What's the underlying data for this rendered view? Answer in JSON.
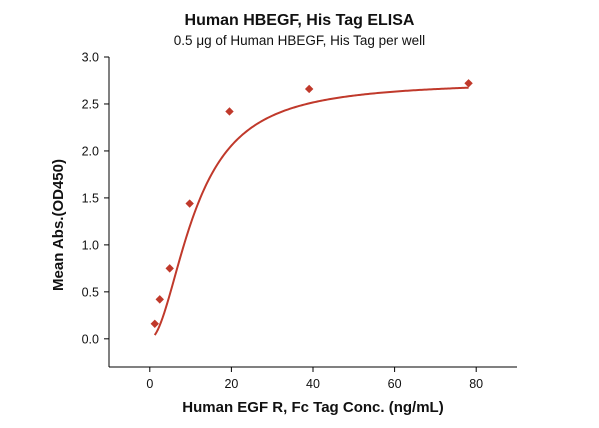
{
  "chart_data": {
    "type": "scatter",
    "title": "Human HBEGF, His Tag ELISA",
    "subtitle": "0.5 μg of Human HBEGF, His Tag per well",
    "xlabel": "Human EGF R, Fc Tag Conc. (ng/mL)",
    "ylabel": "Mean Abs.(OD450)",
    "xlim": [
      -10,
      90
    ],
    "ylim": [
      -0.3,
      3.0
    ],
    "xticks": [
      0,
      20,
      40,
      60,
      80
    ],
    "yticks": [
      0.0,
      0.5,
      1.0,
      1.5,
      2.0,
      2.5,
      3.0
    ],
    "xtick_labels": [
      "0",
      "20",
      "40",
      "60",
      "80"
    ],
    "ytick_labels": [
      "0.0",
      "0.5",
      "1.0",
      "1.5",
      "2.0",
      "2.5",
      "3.0"
    ],
    "grid": false,
    "series": [
      {
        "x": [
          1.22,
          2.44,
          4.88,
          9.77,
          19.53,
          39.06,
          78.13
        ],
        "y": [
          0.16,
          0.42,
          0.75,
          1.44,
          2.42,
          2.66,
          2.72
        ],
        "marker": "diamond",
        "fit": "sigmoidal",
        "color": "#c0392b"
      }
    ]
  }
}
